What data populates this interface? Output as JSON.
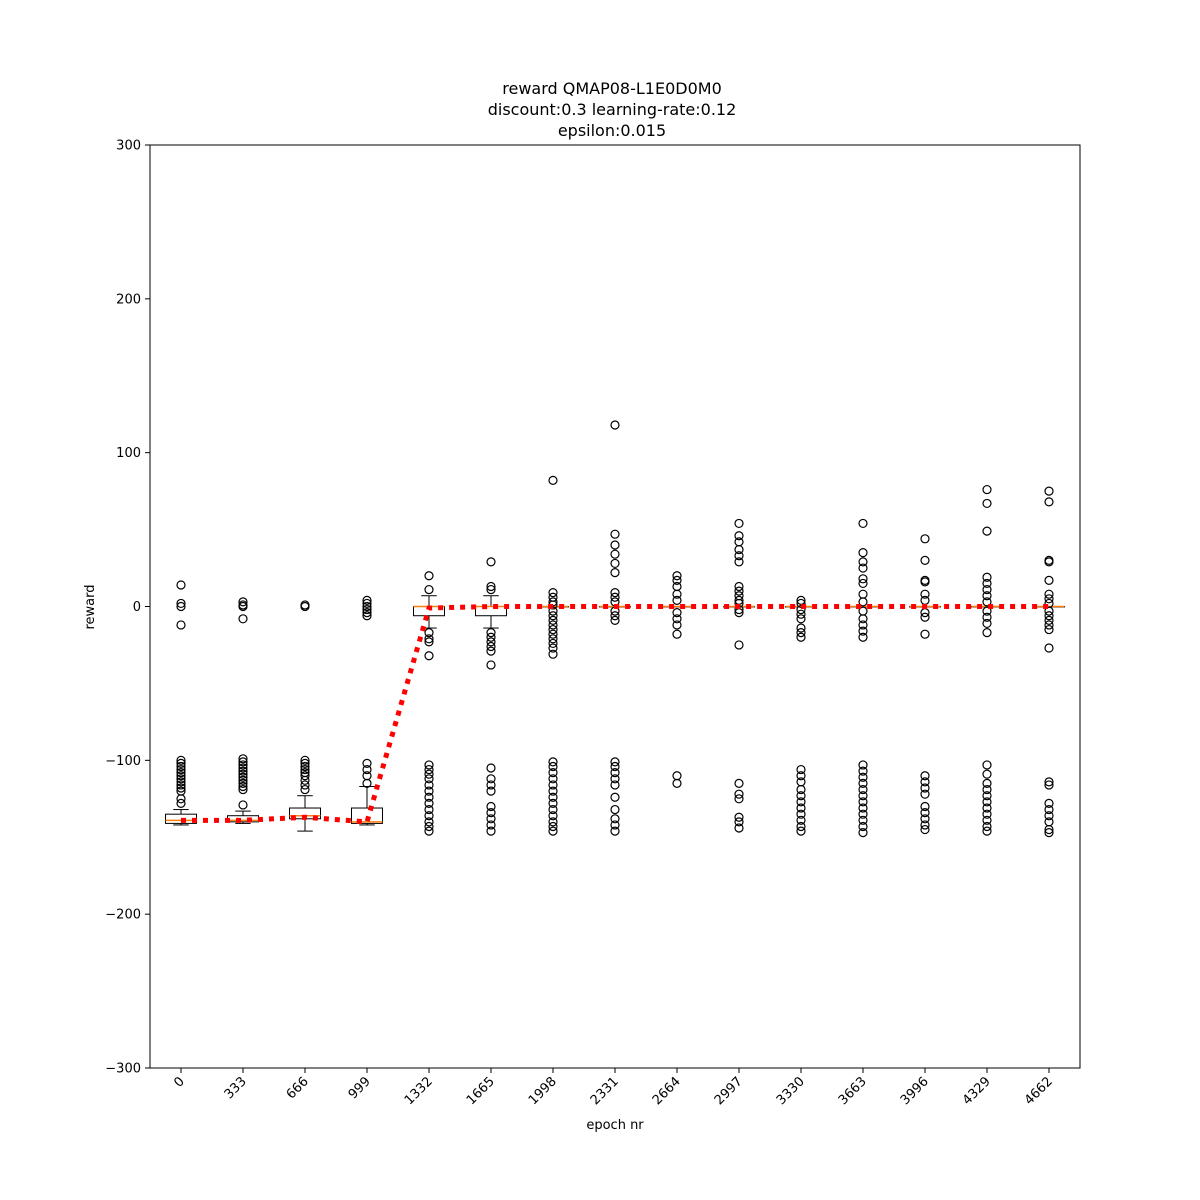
{
  "chart_data": {
    "type": "box",
    "title_lines": [
      "reward QMAP08-L1E0D0M0",
      "discount:0.3 learning-rate:0.12",
      "epsilon:0.015"
    ],
    "xlabel": "epoch nr",
    "ylabel": "reward",
    "ylim": [
      -300,
      300
    ],
    "yticks": [
      -300,
      -200,
      -100,
      0,
      100,
      200,
      300
    ],
    "categories": [
      "0",
      "333",
      "666",
      "999",
      "1332",
      "1665",
      "1998",
      "2331",
      "2664",
      "2997",
      "3330",
      "3663",
      "3996",
      "4329",
      "4662"
    ],
    "grid": false,
    "boxes": [
      {
        "q1": -141,
        "median": -139,
        "q3": -135,
        "wl": -142,
        "wh": -132,
        "fliers": [
          14,
          2,
          0,
          -12,
          -100,
          -102,
          -104,
          -106,
          -108,
          -110,
          -112,
          -114,
          -116,
          -118,
          -120,
          -125,
          -128
        ]
      },
      {
        "q1": -140,
        "median": -139,
        "q3": -136,
        "wl": -141,
        "wh": -133,
        "fliers": [
          3,
          1,
          0,
          -8,
          -99,
          -101,
          -103,
          -105,
          -107,
          -109,
          -111,
          -113,
          -115,
          -117,
          -119,
          -129
        ]
      },
      {
        "q1": -138,
        "median": -136,
        "q3": -131,
        "wl": -146,
        "wh": -123,
        "fliers": [
          1,
          0,
          -100,
          -102,
          -104,
          -106,
          -108,
          -110,
          -113,
          -116,
          -119
        ]
      },
      {
        "q1": -141,
        "median": -140,
        "q3": -131,
        "wl": -142,
        "wh": -117,
        "fliers": [
          4,
          2,
          0,
          -2,
          -4,
          -6,
          -102,
          -106,
          -110,
          -115
        ]
      },
      {
        "q1": -6,
        "median": 0,
        "q3": 0,
        "wl": -14,
        "wh": 7,
        "fliers": [
          20,
          11,
          -17,
          -21,
          -23,
          -32,
          -103,
          -106,
          -109,
          -112,
          -116,
          -120,
          -124,
          -128,
          -132,
          -136,
          -140,
          -143,
          -146
        ]
      },
      {
        "q1": -6,
        "median": 0,
        "q3": 0,
        "wl": -14,
        "wh": 7,
        "fliers": [
          29,
          13,
          11,
          -17,
          -20,
          -23,
          -26,
          -29,
          -38,
          -105,
          -112,
          -116,
          -120,
          -130,
          -134,
          -138,
          -142,
          -146
        ]
      },
      {
        "q1": 0,
        "median": 0,
        "q3": 0,
        "wl": 0,
        "wh": 0,
        "fliers": [
          82,
          9,
          6,
          3,
          1,
          -3,
          -6,
          -9,
          -12,
          -15,
          -18,
          -21,
          -24,
          -27,
          -31,
          -101,
          -104,
          -108,
          -112,
          -116,
          -120,
          -124,
          -128,
          -132,
          -136,
          -140,
          -143,
          -146
        ]
      },
      {
        "q1": 0,
        "median": 0,
        "q3": 0,
        "wl": 0,
        "wh": 0,
        "fliers": [
          118,
          47,
          40,
          34,
          28,
          22,
          9,
          6,
          3,
          -3,
          -6,
          -9,
          -101,
          -104,
          -108,
          -112,
          -116,
          -124,
          -132,
          -138,
          -142,
          -146
        ]
      },
      {
        "q1": 0,
        "median": 0,
        "q3": 0,
        "wl": 0,
        "wh": 0,
        "fliers": [
          20,
          17,
          13,
          8,
          4,
          -4,
          -8,
          -12,
          -18,
          -110,
          -115
        ]
      },
      {
        "q1": 0,
        "median": 0,
        "q3": 0,
        "wl": 0,
        "wh": 0,
        "fliers": [
          54,
          46,
          42,
          37,
          33,
          29,
          13,
          10,
          7,
          4,
          2,
          -2,
          -4,
          -25,
          -115,
          -122,
          -125,
          -137,
          -140,
          -144
        ]
      },
      {
        "q1": 0,
        "median": 0,
        "q3": 0,
        "wl": 0,
        "wh": 0,
        "fliers": [
          4,
          2,
          -2,
          -5,
          -8,
          -14,
          -17,
          -20,
          -106,
          -110,
          -114,
          -119,
          -123,
          -127,
          -131,
          -135,
          -139,
          -143,
          -146
        ]
      },
      {
        "q1": 0,
        "median": 0,
        "q3": 0,
        "wl": 0,
        "wh": 0,
        "fliers": [
          54,
          35,
          29,
          25,
          18,
          15,
          8,
          3,
          -3,
          -8,
          -12,
          -16,
          -20,
          -103,
          -107,
          -111,
          -115,
          -119,
          -123,
          -127,
          -131,
          -135,
          -139,
          -143,
          -147
        ]
      },
      {
        "q1": 0,
        "median": 0,
        "q3": 0,
        "wl": 0,
        "wh": 0,
        "fliers": [
          44,
          30,
          17,
          16,
          8,
          4,
          -4,
          -7,
          -18,
          -110,
          -114,
          -118,
          -122,
          -130,
          -134,
          -138,
          -142,
          -145
        ]
      },
      {
        "q1": 0,
        "median": 0,
        "q3": 0,
        "wl": 0,
        "wh": 0,
        "fliers": [
          76,
          67,
          49,
          19,
          15,
          11,
          7,
          3,
          -3,
          -7,
          -11,
          -17,
          -103,
          -109,
          -115,
          -119,
          -123,
          -127,
          -131,
          -135,
          -139,
          -143,
          -146
        ]
      },
      {
        "q1": 0,
        "median": 0,
        "q3": 0,
        "wl": 0,
        "wh": 0,
        "fliers": [
          75,
          68,
          30,
          29,
          17,
          8,
          5,
          2,
          -3,
          -6,
          -9,
          -12,
          -15,
          -27,
          -114,
          -116,
          -128,
          -132,
          -136,
          -140,
          -145,
          -147
        ]
      }
    ],
    "mean_line": {
      "color": "#ff0000",
      "style": "dotted",
      "values": [
        -139,
        -139,
        -137,
        -140,
        -1,
        0,
        0,
        0,
        0,
        0,
        0,
        0,
        0,
        0,
        0
      ]
    },
    "colors": {
      "median": "#ff7f0e",
      "box": "#000000",
      "mean_line": "#ff0000"
    }
  }
}
